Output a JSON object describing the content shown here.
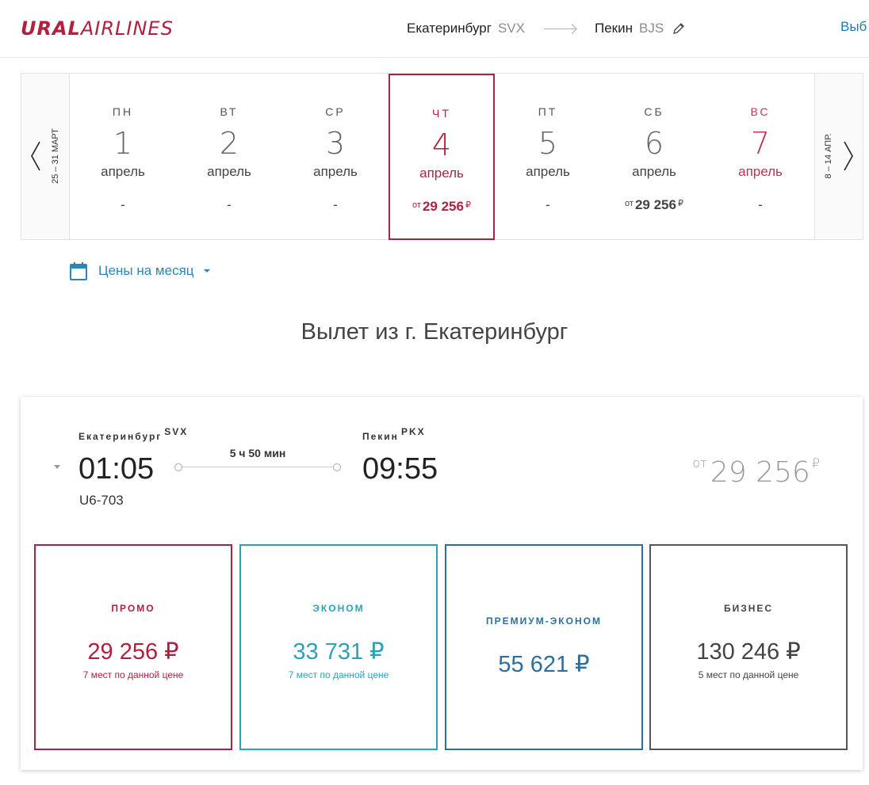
{
  "header": {
    "logo_bold": "URAL",
    "logo_light": "AIRLINES",
    "from_city": "Екатеринбург",
    "from_code": "SVX",
    "to_city": "Пекин",
    "to_code": "BJS",
    "choose_label": "Выб"
  },
  "dates": {
    "prev_label": "25 – 31 МАРТ",
    "next_label": "8 – 14 АПР.",
    "days": [
      {
        "dow": "ПН",
        "num": "1",
        "month": "апрель",
        "price_empty": "-"
      },
      {
        "dow": "ВТ",
        "num": "2",
        "month": "апрель",
        "price_empty": "-"
      },
      {
        "dow": "СР",
        "num": "3",
        "month": "апрель",
        "price_empty": "-"
      },
      {
        "dow": "ЧТ",
        "num": "4",
        "month": "апрель",
        "price_ot": "от",
        "price_amt": "29 256",
        "price_rub": "₽"
      },
      {
        "dow": "ПТ",
        "num": "5",
        "month": "апрель",
        "price_empty": "-"
      },
      {
        "dow": "СБ",
        "num": "6",
        "month": "апрель",
        "price_ot": "от",
        "price_amt": "29 256",
        "price_rub": "₽"
      },
      {
        "dow": "ВС",
        "num": "7",
        "month": "апрель",
        "price_empty": "-"
      }
    ]
  },
  "month_prices": {
    "label": "Цены на месяц"
  },
  "section_title": "Вылет из г. Екатеринбург",
  "flight": {
    "dep_city": "Екатеринбург",
    "dep_code": "SVX",
    "arr_city": "Пекин",
    "arr_code": "PKX",
    "dep_time": "01:05",
    "arr_time": "09:55",
    "duration": "5 ч 50 мин",
    "flight_no": "U6-703",
    "from_ot": "от",
    "from_price": "29 256",
    "from_rub": "₽"
  },
  "fares": [
    {
      "name": "ПРОМО",
      "price": "29 256 ₽",
      "seats": "7 мест по данной цене"
    },
    {
      "name": "ЭКОНОМ",
      "price": "33 731 ₽",
      "seats": "7 мест по данной цене"
    },
    {
      "name": "ПРЕМИУМ-ЭКОНОМ",
      "price": "55 621 ₽"
    },
    {
      "name": "БИЗНЕС",
      "price": "130 246 ₽",
      "seats": "5 мест по данной цене"
    }
  ],
  "colors": {
    "brand_red": "#b1213f",
    "link_blue": "#2a86b8",
    "econom_teal": "#2aa3b9",
    "premium_blue": "#2a6fa1"
  }
}
